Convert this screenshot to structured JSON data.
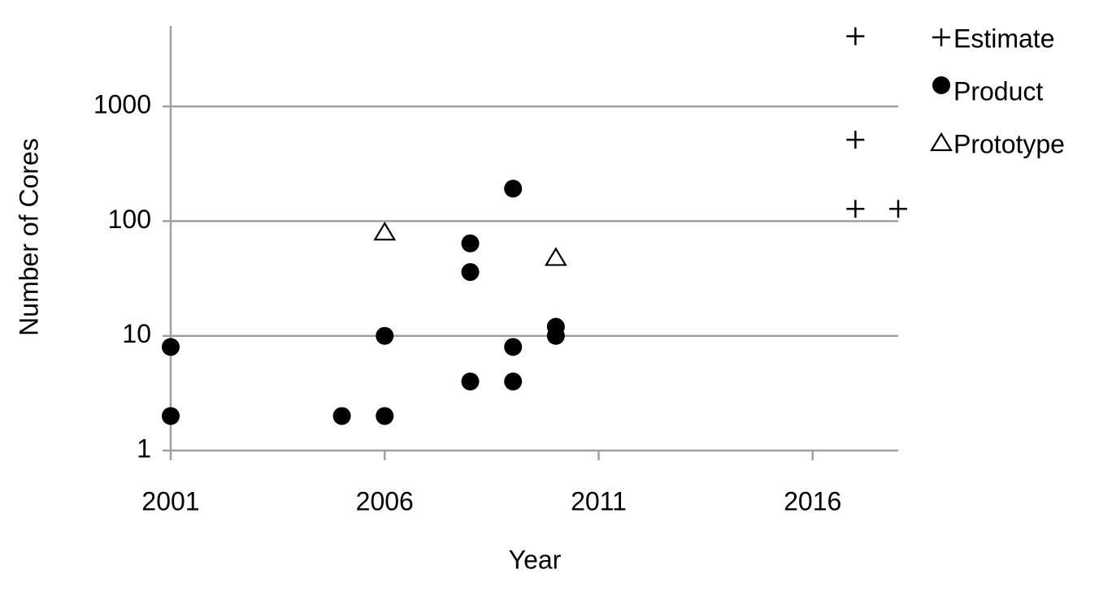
{
  "chart_data": {
    "type": "scatter",
    "x_label": "Year",
    "y_label": "Number of Cores",
    "xlim": [
      2001,
      2018
    ],
    "xticks": [
      2001,
      2006,
      2011,
      2016
    ],
    "ylim": [
      1,
      5000
    ],
    "yticks": [
      1,
      10,
      100,
      1000
    ],
    "y_log": true,
    "grid": true,
    "legend": "top-right",
    "series": [
      {
        "name": "Estimate",
        "marker": "plus",
        "color": "#000000",
        "x": [
          2017,
          2017,
          2017,
          2018
        ],
        "values": [
          4096,
          512,
          128,
          128
        ]
      },
      {
        "name": "Product",
        "marker": "circle",
        "color": "#000000",
        "x": [
          2001,
          2001,
          2005,
          2006,
          2006,
          2008,
          2008,
          2008,
          2009,
          2009,
          2009,
          2010,
          2010
        ],
        "values": [
          8,
          2,
          2,
          2,
          10,
          4,
          36,
          64,
          4,
          8,
          192,
          10,
          12
        ]
      },
      {
        "name": "Prototype",
        "marker": "triangle",
        "color": "#000000",
        "x": [
          2006,
          2010
        ],
        "values": [
          80,
          48
        ]
      }
    ]
  }
}
